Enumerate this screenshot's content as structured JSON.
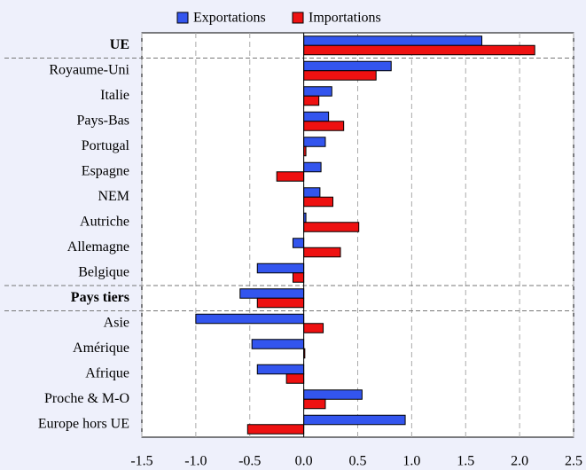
{
  "chart_data": {
    "type": "hbar",
    "categories": [
      "UE",
      "Royaume-Uni",
      "Italie",
      "Pays-Bas",
      "Portugal",
      "Espagne",
      "NEM",
      "Autriche",
      "Allemagne",
      "Belgique",
      "Pays tiers",
      "Asie",
      "Amérique",
      "Afrique",
      "Proche & M-O",
      "Europe hors UE"
    ],
    "series": [
      {
        "name": "Exportations",
        "color": "#3355ee",
        "values": [
          1.65,
          0.81,
          0.26,
          0.23,
          0.2,
          0.16,
          0.15,
          0.02,
          -0.1,
          -0.43,
          -0.59,
          -1.0,
          -0.48,
          -0.43,
          0.54,
          0.94
        ]
      },
      {
        "name": "Importations",
        "color": "#ee1111",
        "values": [
          2.14,
          0.67,
          0.14,
          0.37,
          0.02,
          -0.25,
          0.27,
          0.51,
          0.34,
          -0.1,
          -0.43,
          0.18,
          0.01,
          -0.16,
          0.2,
          -0.52
        ]
      }
    ],
    "xlim": [
      -1.5,
      2.5
    ],
    "xticks": [
      -1.5,
      {
        "value": -1,
        "label": "-1.0"
      },
      -0.5,
      {
        "value": 0,
        "label": "0.0"
      },
      0.5,
      {
        "value": 1,
        "label": "1.0"
      },
      1.5,
      {
        "value": 2,
        "label": "2.0"
      },
      2.5
    ],
    "grid": true,
    "legend": "top"
  }
}
